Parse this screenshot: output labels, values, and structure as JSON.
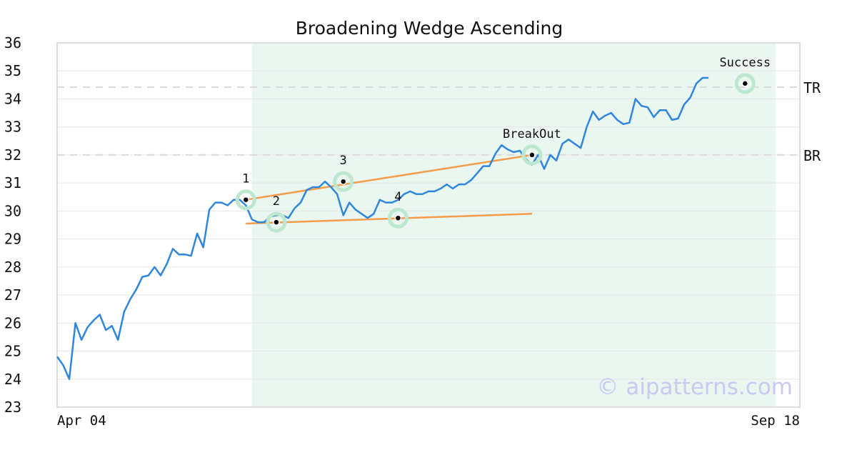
{
  "chart_data": {
    "type": "line",
    "title": "Broadening Wedge Ascending",
    "xlabel": "",
    "ylabel": "",
    "ylim": [
      23,
      36
    ],
    "yticks": [
      23,
      24,
      25,
      26,
      27,
      28,
      29,
      30,
      31,
      32,
      33,
      34,
      35,
      36
    ],
    "x_tick_labels": [
      "Apr 04",
      "Sep 18"
    ],
    "grid": true,
    "colors": {
      "price": "#2e86de",
      "trend": "#f39c4a",
      "highlight": "#eaf6f0",
      "marker_halo": "#bde8cf",
      "hline": "#d9d9d9",
      "watermark": "#c9c9f2"
    },
    "series": [
      {
        "values": [
          24.8,
          24.5,
          24.0,
          26.0,
          25.4,
          25.85,
          26.1,
          26.3,
          25.75,
          25.9,
          25.4,
          26.4,
          26.85,
          27.2,
          27.65,
          27.7,
          28.0,
          27.7,
          28.1,
          28.65,
          28.45,
          28.45,
          28.4,
          29.2,
          28.7,
          30.05,
          30.3,
          30.3,
          30.2,
          30.4,
          30.4,
          30.2,
          29.7,
          29.6,
          29.6,
          29.8,
          29.85,
          29.85,
          29.75,
          30.1,
          30.3,
          30.75,
          30.85,
          30.85,
          31.05,
          30.85,
          30.6,
          29.85,
          30.3,
          30.05,
          29.9,
          29.75,
          29.9,
          30.4,
          30.3,
          30.3,
          30.4,
          30.6,
          30.7,
          30.6,
          30.6,
          30.7,
          30.7,
          30.8,
          30.95,
          30.8,
          30.95,
          30.95,
          31.1,
          31.35,
          31.6,
          31.6,
          32.05,
          32.35,
          32.2,
          32.1,
          32.15,
          31.85,
          31.65,
          32.0,
          31.5,
          32.0,
          31.8,
          32.4,
          32.55,
          32.4,
          32.25,
          33.0,
          33.55,
          33.25,
          33.4,
          33.5,
          33.25,
          33.1,
          33.15,
          34.0,
          33.75,
          33.7,
          33.35,
          33.6,
          33.6,
          33.25,
          33.3,
          33.8,
          34.05,
          34.55,
          34.75,
          34.75
        ]
      }
    ],
    "highlight_range": [
      32,
      118
    ],
    "horizontal_lines": [
      {
        "label": "TR",
        "value": 34.42
      },
      {
        "label": "BR",
        "value": 32.0
      }
    ],
    "trend_lines": [
      {
        "from": [
          31,
          30.4
        ],
        "to": [
          78,
          32.0
        ]
      },
      {
        "from": [
          31,
          29.55
        ],
        "to": [
          78,
          29.9
        ]
      }
    ],
    "annotations": [
      {
        "label": "1",
        "x": 31,
        "y": 30.4
      },
      {
        "label": "2",
        "x": 36,
        "y": 29.6
      },
      {
        "label": "3",
        "x": 47,
        "y": 31.05
      },
      {
        "label": "4",
        "x": 56,
        "y": 29.75
      },
      {
        "label": "BreakOut",
        "x": 78,
        "y": 32.0
      },
      {
        "label": "Success",
        "x": 113,
        "y": 34.55
      }
    ]
  },
  "watermark": "© aipatterns.com"
}
